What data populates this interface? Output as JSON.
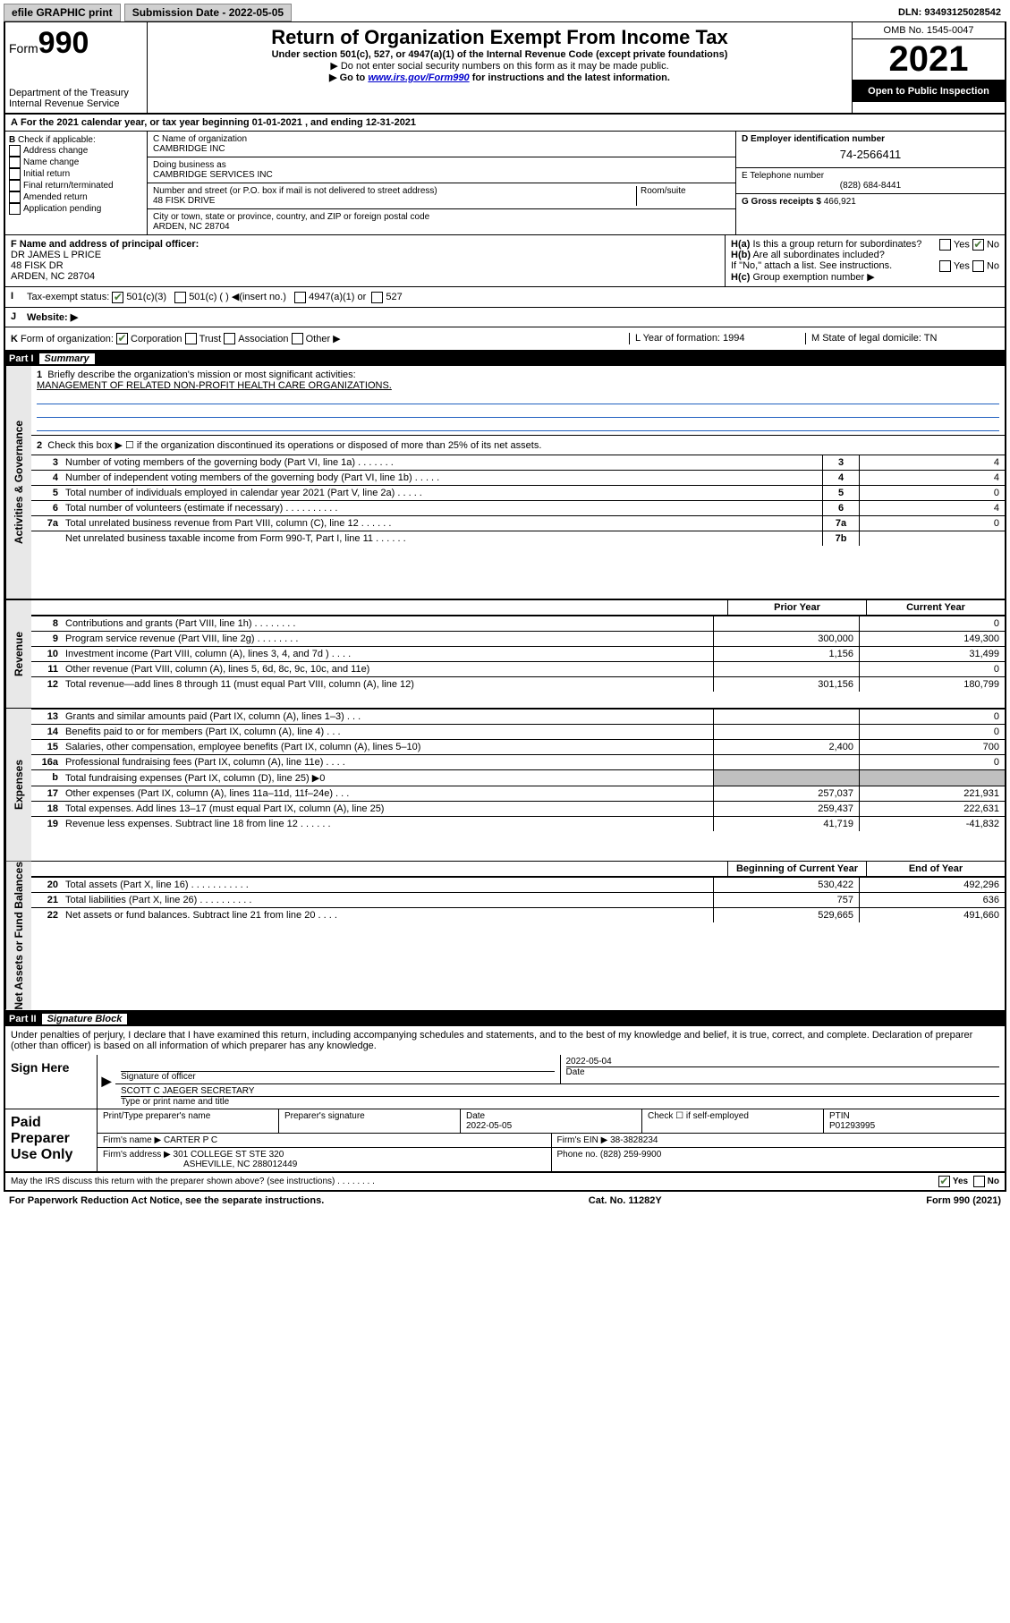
{
  "topbar": {
    "efile": "efile GRAPHIC print",
    "submission_label": "Submission Date - 2022-05-05",
    "dln": "DLN: 93493125028542"
  },
  "header": {
    "form_prefix": "Form",
    "form_num": "990",
    "dept": "Department of the Treasury",
    "irs": "Internal Revenue Service",
    "title": "Return of Organization Exempt From Income Tax",
    "sub1": "Under section 501(c), 527, or 4947(a)(1) of the Internal Revenue Code (except private foundations)",
    "sub2": "▶ Do not enter social security numbers on this form as it may be made public.",
    "sub3_pre": "▶ Go to ",
    "sub3_link": "www.irs.gov/Form990",
    "sub3_post": " for instructions and the latest information.",
    "omb": "OMB No. 1545-0047",
    "year": "2021",
    "open": "Open to Public Inspection"
  },
  "A": {
    "line": "For the 2021 calendar year, or tax year beginning 01-01-2021   , and ending 12-31-2021"
  },
  "B": {
    "label": "Check if applicable:",
    "opts": [
      "Address change",
      "Name change",
      "Initial return",
      "Final return/terminated",
      "Amended return",
      "Application pending"
    ]
  },
  "C": {
    "name_lbl": "C Name of organization",
    "name": "CAMBRIDGE INC",
    "dba_lbl": "Doing business as",
    "dba": "CAMBRIDGE SERVICES INC",
    "addr_lbl": "Number and street (or P.O. box if mail is not delivered to street address)",
    "addr": "48 FISK DRIVE",
    "room_lbl": "Room/suite",
    "city_lbl": "City or town, state or province, country, and ZIP or foreign postal code",
    "city": "ARDEN, NC  28704"
  },
  "D": {
    "lbl": "D Employer identification number",
    "val": "74-2566411"
  },
  "E": {
    "lbl": "E Telephone number",
    "val": "(828) 684-8441"
  },
  "G": {
    "lbl": "G Gross receipts $",
    "val": "466,921"
  },
  "F": {
    "lbl": "F Name and address of principal officer:",
    "name": "DR JAMES L PRICE",
    "addr1": "48 FISK DR",
    "addr2": "ARDEN, NC  28704"
  },
  "H": {
    "a": "Is this a group return for subordinates?",
    "b": "Are all subordinates included?",
    "ifno": "If \"No,\" attach a list. See instructions.",
    "c": "Group exemption number ▶"
  },
  "I": {
    "lbl": "Tax-exempt status:",
    "o1": "501(c)(3)",
    "o2": "501(c) (  ) ◀(insert no.)",
    "o3": "4947(a)(1) or",
    "o4": "527"
  },
  "J": {
    "lbl": "Website: ▶"
  },
  "K": {
    "lbl": "Form of organization:",
    "o1": "Corporation",
    "o2": "Trust",
    "o3": "Association",
    "o4": "Other ▶"
  },
  "L": {
    "lbl": "L Year of formation: 1994"
  },
  "M": {
    "lbl": "M State of legal domicile: TN"
  },
  "part1": {
    "title": "Part I",
    "sub": "Summary"
  },
  "side": {
    "gov": "Activities & Governance",
    "rev": "Revenue",
    "exp": "Expenses",
    "net": "Net Assets or Fund Balances"
  },
  "q1": {
    "lbl": "Briefly describe the organization's mission or most significant activities:",
    "val": "MANAGEMENT OF RELATED NON-PROFIT HEALTH CARE ORGANIZATIONS."
  },
  "q2": "Check this box ▶ ☐  if the organization discontinued its operations or disposed of more than 25% of its net assets.",
  "rows_gov": [
    {
      "n": "3",
      "d": "Number of voting members of the governing body (Part VI, line 1a)   .   .   .   .   .   .   .",
      "box": "3",
      "v": "4"
    },
    {
      "n": "4",
      "d": "Number of independent voting members of the governing body (Part VI, line 1b)  .   .   .   .   .",
      "box": "4",
      "v": "4"
    },
    {
      "n": "5",
      "d": "Total number of individuals employed in calendar year 2021 (Part V, line 2a)   .   .   .   .   .",
      "box": "5",
      "v": "0"
    },
    {
      "n": "6",
      "d": "Total number of volunteers (estimate if necessary)   .   .   .   .   .   .   .   .   .   .",
      "box": "6",
      "v": "4"
    },
    {
      "n": "7a",
      "d": "Total unrelated business revenue from Part VIII, column (C), line 12   .   .   .   .   .   .",
      "box": "7a",
      "v": "0"
    },
    {
      "n": "",
      "d": "Net unrelated business taxable income from Form 990-T, Part I, line 11   .   .   .   .   .   .",
      "box": "7b",
      "v": ""
    }
  ],
  "col_hdr": {
    "prior": "Prior Year",
    "cur": "Current Year",
    "beg": "Beginning of Current Year",
    "end": "End of Year"
  },
  "rows_rev": [
    {
      "n": "8",
      "d": "Contributions and grants (Part VIII, line 1h)   .   .   .   .   .   .   .   .",
      "p": "",
      "c": "0"
    },
    {
      "n": "9",
      "d": "Program service revenue (Part VIII, line 2g)   .   .   .   .   .   .   .   .",
      "p": "300,000",
      "c": "149,300"
    },
    {
      "n": "10",
      "d": "Investment income (Part VIII, column (A), lines 3, 4, and 7d )   .   .   .   .",
      "p": "1,156",
      "c": "31,499"
    },
    {
      "n": "11",
      "d": "Other revenue (Part VIII, column (A), lines 5, 6d, 8c, 9c, 10c, and 11e)",
      "p": "",
      "c": "0"
    },
    {
      "n": "12",
      "d": "Total revenue—add lines 8 through 11 (must equal Part VIII, column (A), line 12)",
      "p": "301,156",
      "c": "180,799"
    }
  ],
  "rows_exp": [
    {
      "n": "13",
      "d": "Grants and similar amounts paid (Part IX, column (A), lines 1–3)   .   .   .",
      "p": "",
      "c": "0"
    },
    {
      "n": "14",
      "d": "Benefits paid to or for members (Part IX, column (A), line 4)   .   .   .",
      "p": "",
      "c": "0"
    },
    {
      "n": "15",
      "d": "Salaries, other compensation, employee benefits (Part IX, column (A), lines 5–10)",
      "p": "2,400",
      "c": "700"
    },
    {
      "n": "16a",
      "d": "Professional fundraising fees (Part IX, column (A), line 11e)   .   .   .   .",
      "p": "",
      "c": "0"
    },
    {
      "n": "b",
      "d": "Total fundraising expenses (Part IX, column (D), line 25)  ▶0",
      "p": "",
      "c": "",
      "grey": true
    },
    {
      "n": "17",
      "d": "Other expenses (Part IX, column (A), lines 11a–11d, 11f–24e)   .   .   .",
      "p": "257,037",
      "c": "221,931"
    },
    {
      "n": "18",
      "d": "Total expenses. Add lines 13–17 (must equal Part IX, column (A), line 25)",
      "p": "259,437",
      "c": "222,631"
    },
    {
      "n": "19",
      "d": "Revenue less expenses. Subtract line 18 from line 12   .   .   .   .   .   .",
      "p": "41,719",
      "c": "-41,832"
    }
  ],
  "rows_net": [
    {
      "n": "20",
      "d": "Total assets (Part X, line 16)   .   .   .   .   .   .   .   .   .   .   .",
      "p": "530,422",
      "c": "492,296"
    },
    {
      "n": "21",
      "d": "Total liabilities (Part X, line 26)   .   .   .   .   .   .   .   .   .   .",
      "p": "757",
      "c": "636"
    },
    {
      "n": "22",
      "d": "Net assets or fund balances. Subtract line 21 from line 20   .   .   .   .",
      "p": "529,665",
      "c": "491,660"
    }
  ],
  "part2": {
    "title": "Part II",
    "sub": "Signature Block"
  },
  "perjury": "Under penalties of perjury, I declare that I have examined this return, including accompanying schedules and statements, and to the best of my knowledge and belief, it is true, correct, and complete. Declaration of preparer (other than officer) is based on all information of which preparer has any knowledge.",
  "sign": {
    "here": "Sign Here",
    "sig_lbl": "Signature of officer",
    "date_lbl": "Date",
    "date": "2022-05-04",
    "name": "SCOTT C JAEGER  SECRETARY",
    "name_lbl": "Type or print name and title"
  },
  "paid": {
    "title": "Paid Preparer Use Only",
    "h1": "Print/Type preparer's name",
    "h2": "Preparer's signature",
    "h3": "Date",
    "date": "2022-05-05",
    "h4": "Check ☐ if self-employed",
    "h5": "PTIN",
    "ptin": "P01293995",
    "firm_name_lbl": "Firm's name   ▶",
    "firm_name": "CARTER P C",
    "firm_ein_lbl": "Firm's EIN ▶",
    "firm_ein": "38-3828234",
    "firm_addr_lbl": "Firm's address ▶",
    "firm_addr": "301 COLLEGE ST STE 320",
    "firm_city": "ASHEVILLE, NC  288012449",
    "phone_lbl": "Phone no.",
    "phone": "(828) 259-9900"
  },
  "footer": {
    "discuss": "May the IRS discuss this return with the preparer shown above? (see instructions)   .   .   .   .   .   .   .   .",
    "yes": "Yes",
    "no": "No",
    "paperwork": "For Paperwork Reduction Act Notice, see the separate instructions.",
    "cat": "Cat. No. 11282Y",
    "form": "Form 990 (2021)"
  }
}
